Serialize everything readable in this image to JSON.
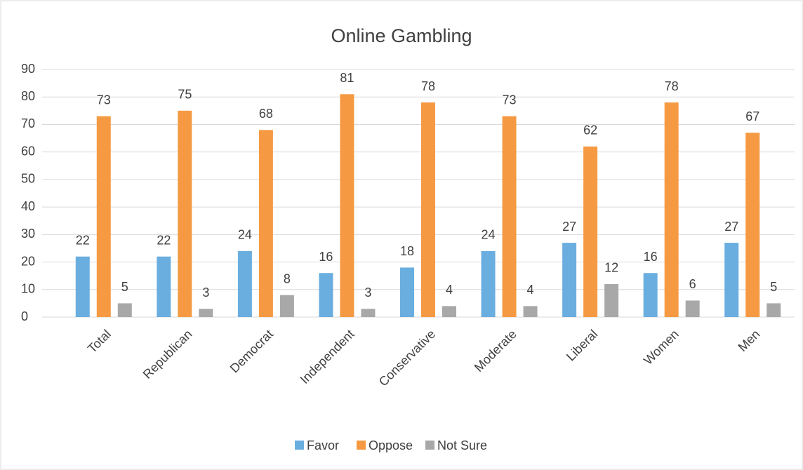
{
  "chart_data": {
    "type": "bar",
    "title": "Online Gambling",
    "categories": [
      "Total",
      "Republican",
      "Democrat",
      "Independent",
      "Conservative",
      "Moderate",
      "Liberal",
      "Women",
      "Men"
    ],
    "series": [
      {
        "name": "Favor",
        "color": "#6aaee0",
        "values": [
          22,
          22,
          24,
          16,
          18,
          24,
          27,
          16,
          27
        ]
      },
      {
        "name": "Oppose",
        "color": "#f59a42",
        "values": [
          73,
          75,
          68,
          81,
          78,
          73,
          62,
          78,
          67
        ]
      },
      {
        "name": "Not Sure",
        "color": "#a8a8a8",
        "values": [
          5,
          3,
          8,
          3,
          4,
          4,
          12,
          6,
          5
        ]
      }
    ],
    "ylim": [
      0,
      90
    ],
    "yticks": [
      0,
      10,
      20,
      30,
      40,
      50,
      60,
      70,
      80,
      90
    ],
    "grid": true,
    "legend": "bottom"
  }
}
